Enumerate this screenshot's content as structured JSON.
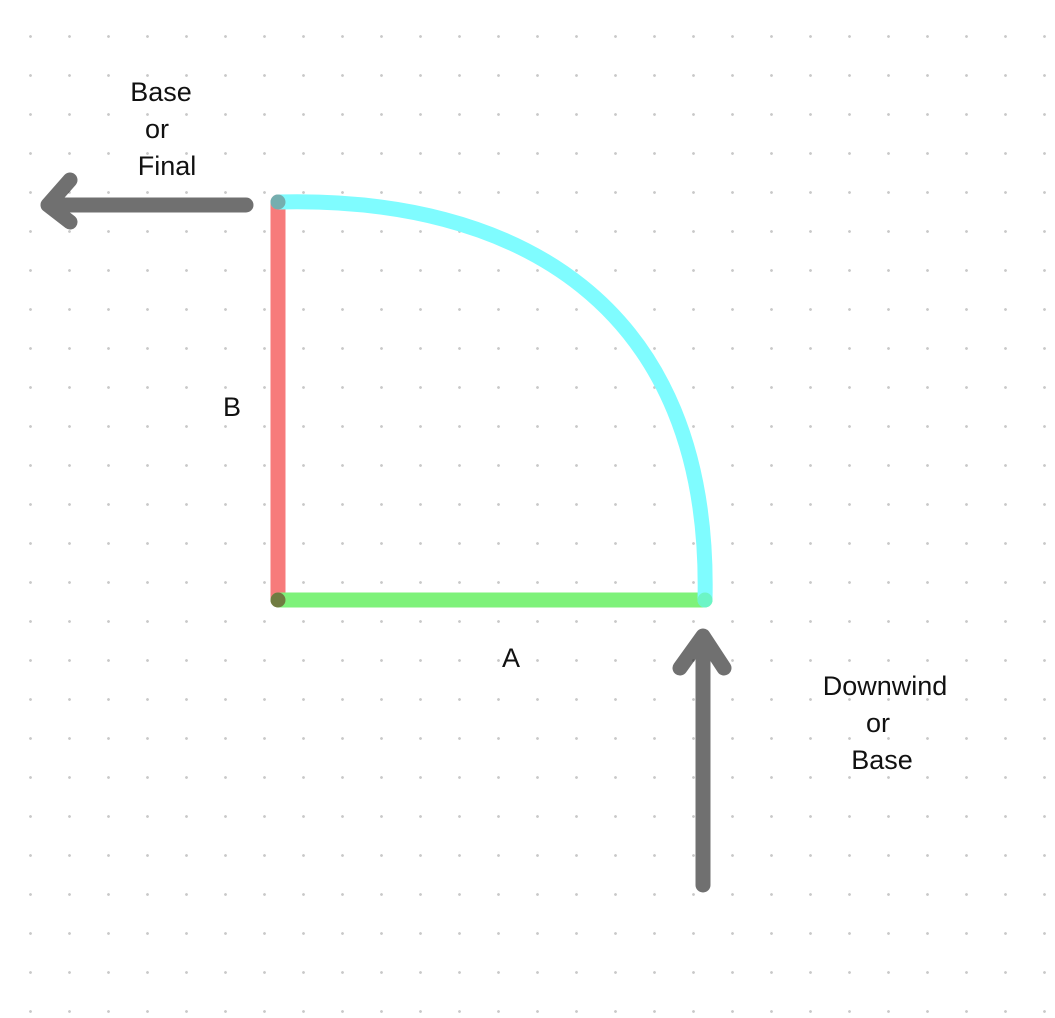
{
  "labels": {
    "top_left": {
      "line1": "Base",
      "line2": "or",
      "line3": "Final"
    },
    "side_b": "B",
    "side_a": "A",
    "bottom_right": {
      "line1": "Downwind",
      "line2": "or",
      "line3": "Base"
    }
  },
  "colors": {
    "side_a": "#7ef27a",
    "side_b": "#f77b7b",
    "arc": "#7ffcff",
    "arrow": "#6e6e6e",
    "dot_grid": "#c9c9c9"
  }
}
